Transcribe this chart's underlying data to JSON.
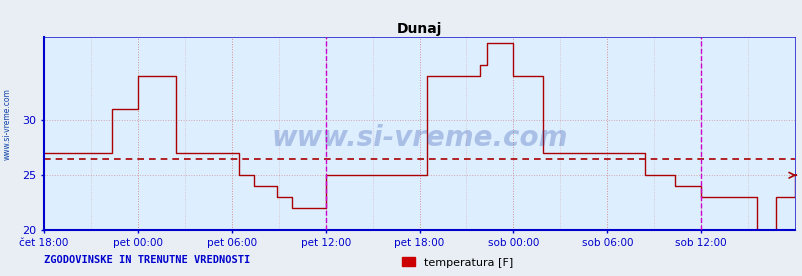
{
  "title": "Dunaj",
  "title_color": "#000000",
  "title_fontsize": 10,
  "ylim": [
    20,
    37.5
  ],
  "yticks": [
    20,
    25,
    30
  ],
  "plot_bg_color": "#ddeeff",
  "outer_bg_color": "#e8eef4",
  "line_color": "#aa0000",
  "axis_color": "#0000cc",
  "avg_line_color": "#aa0000",
  "avg_line_value": 26.5,
  "vline_color": "#cc00cc",
  "watermark": "www.si-vreme.com",
  "watermark_color": "#3355aa",
  "side_text": "www.si-vreme.com",
  "bottom_label": "ZGODOVINSKE IN TRENUTNE VREDNOSTI",
  "legend_label": "temperatura [F]",
  "legend_color": "#cc0000",
  "tick_labels": [
    "čet 18:00",
    "pet 00:00",
    "pet 06:00",
    "pet 12:00",
    "pet 18:00",
    "sob 00:00",
    "sob 06:00",
    "sob 12:00"
  ],
  "tick_positions": [
    0.0,
    0.125,
    0.25,
    0.375,
    0.5,
    0.625,
    0.75,
    0.875
  ],
  "minor_tick_positions": [
    0.0625,
    0.1875,
    0.3125,
    0.4375,
    0.5625,
    0.6875,
    0.8125,
    0.9375
  ],
  "x_values": [
    0.0,
    0.01,
    0.02,
    0.04,
    0.06,
    0.085,
    0.09,
    0.11,
    0.125,
    0.16,
    0.175,
    0.25,
    0.26,
    0.27,
    0.28,
    0.295,
    0.31,
    0.33,
    0.345,
    0.37,
    0.376,
    0.38,
    0.41,
    0.49,
    0.5,
    0.51,
    0.53,
    0.56,
    0.58,
    0.59,
    0.6,
    0.61,
    0.625,
    0.65,
    0.665,
    0.7,
    0.75,
    0.76,
    0.78,
    0.8,
    0.82,
    0.84,
    0.86,
    0.87,
    0.875,
    0.88,
    0.89,
    0.9,
    0.91,
    0.92,
    0.93,
    0.94,
    0.95,
    0.96,
    0.975,
    1.0
  ],
  "y_values": [
    27,
    27,
    27,
    27,
    27,
    27,
    31,
    31,
    34,
    34,
    27,
    27,
    25,
    25,
    24,
    24,
    23,
    22,
    22,
    22,
    25,
    25,
    25,
    25,
    25,
    34,
    34,
    34,
    35,
    37,
    37,
    37,
    34,
    34,
    27,
    27,
    27,
    27,
    27,
    25,
    25,
    24,
    24,
    24,
    23,
    23,
    23,
    23,
    23,
    23,
    23,
    23,
    20,
    20,
    23,
    25
  ]
}
